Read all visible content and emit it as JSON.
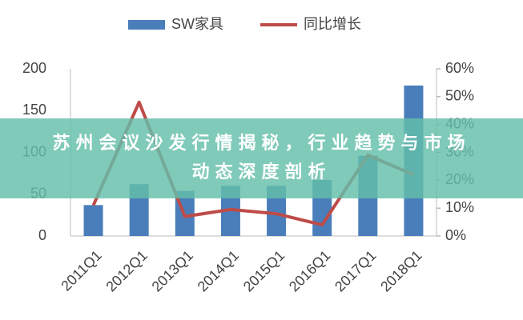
{
  "chart_data": {
    "type": "bar_line",
    "categories": [
      "2011Q1",
      "2012Q1",
      "2013Q1",
      "2014Q1",
      "2015Q1",
      "2016Q1",
      "2017Q1",
      "2018Q1"
    ],
    "series": [
      {
        "name": "SW家具",
        "type": "bar",
        "color": "#4a7ebb",
        "values": [
          37,
          62,
          54,
          60,
          60,
          67,
          96,
          180
        ]
      },
      {
        "name": "同比增长",
        "type": "line",
        "axis": "y2",
        "color": "#be4b48",
        "values": [
          11,
          48,
          7,
          9.5,
          8,
          4,
          29,
          22
        ]
      }
    ],
    "ylim": [
      0,
      200
    ],
    "yticks": [
      0,
      50,
      100,
      150,
      200
    ],
    "y2lim": [
      0,
      60
    ],
    "y2ticks": [
      {
        "value": 0,
        "label": "0%"
      },
      {
        "value": 10,
        "label": "10%"
      },
      {
        "value": 20,
        "label": "20%"
      },
      {
        "value": 30,
        "label": "30%"
      },
      {
        "value": 40,
        "label": "40%"
      },
      {
        "value": 50,
        "label": "50%"
      },
      {
        "value": 60,
        "label": "60%"
      }
    ],
    "grid": false,
    "legend": "top"
  },
  "banner": {
    "text": "苏州会议沙发行情揭秘，行业趋势与市场动态深度剖析"
  }
}
